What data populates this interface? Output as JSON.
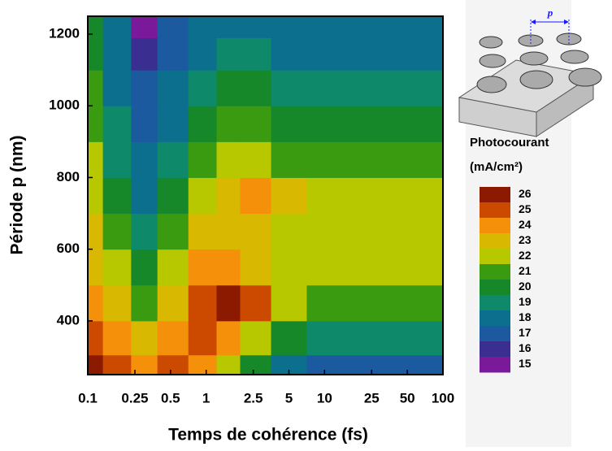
{
  "chart_data": {
    "type": "contour",
    "xlabel": "Temps de cohérence (fs)",
    "ylabel": "Période p (nm)",
    "x": [
      0.1,
      0.18,
      0.3,
      0.5,
      1,
      1.5,
      2.5,
      5,
      10,
      25,
      50,
      100
    ],
    "y": [
      260,
      350,
      450,
      550,
      650,
      750,
      850,
      950,
      1050,
      1150,
      1230
    ],
    "z": [
      [
        26,
        25,
        24,
        25,
        24,
        22,
        20,
        18,
        17,
        17,
        17,
        17
      ],
      [
        25,
        24,
        23,
        24,
        25,
        24,
        22,
        20,
        19,
        19,
        19,
        19
      ],
      [
        24,
        23,
        21,
        23,
        25,
        26,
        25,
        22,
        21,
        21,
        21,
        21
      ],
      [
        23,
        22,
        20,
        22,
        24,
        24,
        23,
        22,
        22,
        22,
        22,
        22
      ],
      [
        23,
        21,
        19,
        21,
        23,
        23,
        23,
        22,
        22,
        22,
        22,
        22
      ],
      [
        22,
        20,
        18,
        20,
        22,
        23,
        24,
        23,
        22,
        22,
        22,
        22
      ],
      [
        22,
        19,
        18,
        19,
        21,
        22,
        22,
        21,
        21,
        21,
        21,
        21
      ],
      [
        21,
        19,
        17,
        18,
        20,
        21,
        21,
        20,
        20,
        20,
        20,
        20
      ],
      [
        21,
        18,
        17,
        18,
        19,
        20,
        20,
        19,
        19,
        19,
        19,
        19
      ],
      [
        20,
        18,
        16,
        17,
        18,
        19,
        19,
        18,
        18,
        18,
        18,
        18
      ],
      [
        20,
        18,
        15,
        17,
        18,
        18,
        18,
        18,
        18,
        18,
        18,
        18
      ]
    ],
    "xscale": "log",
    "xlim": [
      0.1,
      100
    ],
    "xticks": [
      0.1,
      0.25,
      0.5,
      1,
      2.5,
      5,
      10,
      25,
      50,
      100
    ],
    "ylim": [
      250,
      1250
    ],
    "yticks": [
      400,
      600,
      800,
      1000,
      1200
    ],
    "colorbar_title": "Photocourant",
    "colorbar_unit": "(mA/cm²)",
    "levels": [
      15,
      16,
      17,
      18,
      19,
      20,
      21,
      22,
      23,
      24,
      25,
      26
    ],
    "colors": [
      "#7a1a9a",
      "#3a2f90",
      "#1c5aa0",
      "#0d6f8e",
      "#0e8a6a",
      "#17882a",
      "#3a9a10",
      "#b8c800",
      "#d8b800",
      "#f5900a",
      "#cc4a00",
      "#8b1a00"
    ],
    "inset_label": "p"
  }
}
